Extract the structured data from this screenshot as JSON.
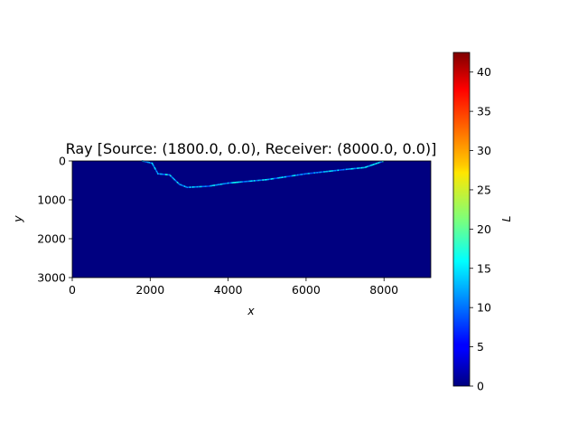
{
  "chart_data": {
    "type": "heatmap",
    "title": "Ray [Source: (1800.0, 0.0), Receiver: (8000.0, 0.0)]",
    "xlabel": "x",
    "ylabel": "y",
    "xlim": [
      0,
      9200
    ],
    "ylim": [
      3000,
      0
    ],
    "xticks": [
      0,
      2000,
      4000,
      6000,
      8000
    ],
    "yticks": [
      0,
      1000,
      2000,
      3000
    ],
    "colorbar": {
      "label": "L",
      "colormap": "jet",
      "range": [
        0,
        42.5
      ],
      "ticks": [
        0,
        5,
        10,
        15,
        20,
        25,
        30,
        35,
        40
      ]
    },
    "background_value": 0,
    "ray_path": {
      "points": [
        {
          "x": 1800,
          "y": 0
        },
        {
          "x": 2050,
          "y": 60
        },
        {
          "x": 2200,
          "y": 330
        },
        {
          "x": 2500,
          "y": 360
        },
        {
          "x": 2750,
          "y": 600
        },
        {
          "x": 2950,
          "y": 680
        },
        {
          "x": 3500,
          "y": 650
        },
        {
          "x": 4000,
          "y": 570
        },
        {
          "x": 5000,
          "y": 480
        },
        {
          "x": 6000,
          "y": 330
        },
        {
          "x": 7000,
          "y": 220
        },
        {
          "x": 7500,
          "y": 170
        },
        {
          "x": 8000,
          "y": 0
        }
      ],
      "value_range": [
        8,
        17
      ]
    }
  }
}
